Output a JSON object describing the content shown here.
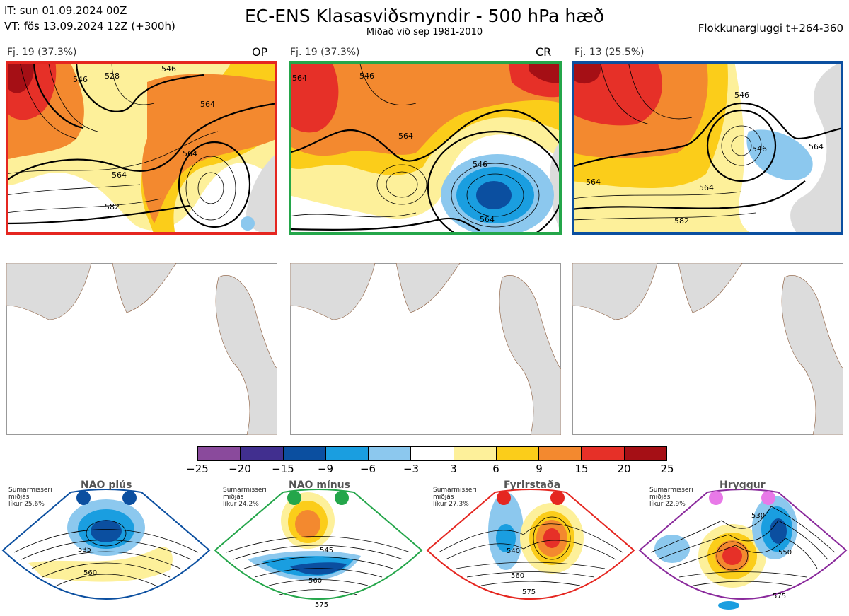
{
  "header": {
    "it_line": "IT: sun 01.09.2024 00Z",
    "vt_line": "VT: fös 13.09.2024 12Z  (+300h)",
    "title": "EC-ENS Klasasviðsmyndir - 500 hPa hæð",
    "subtitle": "Miðað við sep 1981-2010",
    "window": "Flokkunargluggi t+264-360"
  },
  "panels": [
    {
      "label": "Fj. 19 (37.3%)",
      "tag": "OP",
      "border": "#e52620"
    },
    {
      "label": "Fj. 19 (37.3%)",
      "tag": "CR",
      "border": "#24a64a"
    },
    {
      "label": "Fj. 13 (25.5%)",
      "tag": "",
      "border": "#0b4fa0"
    }
  ],
  "contour_labels": {
    "p1": [
      "546",
      "528",
      "546",
      "564",
      "564",
      "564",
      "582"
    ],
    "p2": [
      "564",
      "546",
      "564",
      "546",
      "564"
    ],
    "p3": [
      "546",
      "546",
      "564",
      "564",
      "564",
      "582"
    ]
  },
  "colorbar": {
    "colors": [
      "#8a4a9c",
      "#412f8f",
      "#0b4fa0",
      "#1a9ee0",
      "#8cc8ee",
      "#ffffff",
      "#fdf09a",
      "#fbcd1a",
      "#f3892f",
      "#e63028",
      "#a50f15"
    ],
    "ticks": [
      "−25",
      "−20",
      "−15",
      "−9",
      "−6",
      "−3",
      "3",
      "6",
      "9",
      "15",
      "20",
      "25"
    ]
  },
  "regimes": [
    {
      "name": "NAO plús",
      "meta": [
        "Sumarmisseri",
        "miðjás",
        "líkur 25,6%"
      ],
      "dot_color": "#0b4fa0",
      "border": "#0b4fa0",
      "labels": [
        "535",
        "560"
      ]
    },
    {
      "name": "NAO mínus",
      "meta": [
        "Sumarmisseri",
        "miðjás",
        "líkur 24,2%"
      ],
      "dot_color": "#24a64a",
      "border": "#24a64a",
      "labels": [
        "545",
        "560",
        "575"
      ]
    },
    {
      "name": "Fyrirstaða",
      "meta": [
        "Sumarmisseri",
        "miðjás",
        "líkur 27,3%"
      ],
      "dot_color": "#e52620",
      "border": "#e52620",
      "labels": [
        "540",
        "560",
        "575"
      ]
    },
    {
      "name": "Hryggur",
      "meta": [
        "Sumarmisseri",
        "miðjás",
        "líkur 22,9%"
      ],
      "dot_color": "#e879e8",
      "border": "#8a2a9c",
      "labels": [
        "530",
        "550",
        "575"
      ]
    }
  ]
}
